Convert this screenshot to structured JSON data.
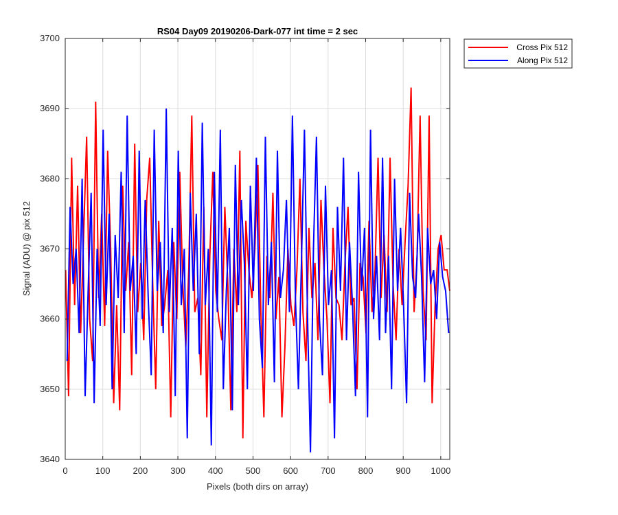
{
  "chart_data": {
    "type": "line",
    "title": "RS04 Day09 20190206-Dark-077 int time = 2 sec",
    "xlabel": "Pixels (both dirs on array)",
    "ylabel": "Signal (ADU) @ pix 512",
    "xlim": [
      0,
      1024
    ],
    "ylim": [
      3640,
      3700
    ],
    "xticks": [
      0,
      100,
      200,
      300,
      400,
      500,
      600,
      700,
      800,
      900,
      1000
    ],
    "yticks": [
      3640,
      3650,
      3660,
      3670,
      3680,
      3690,
      3700
    ],
    "grid": true,
    "legend_position": "outside-top-right",
    "series": [
      {
        "name": "Cross Pix 512",
        "color": "#ff0000",
        "x_start": 1,
        "x_step": 8,
        "values": [
          3667,
          3649,
          3683,
          3662,
          3679,
          3658,
          3672,
          3686,
          3660,
          3654,
          3691,
          3663,
          3675,
          3659,
          3684,
          3670,
          3648,
          3662,
          3647,
          3679,
          3664,
          3671,
          3652,
          3685,
          3661,
          3668,
          3657,
          3677,
          3683,
          3665,
          3650,
          3674,
          3659,
          3662,
          3667,
          3646,
          3671,
          3660,
          3681,
          3665,
          3656,
          3667,
          3689,
          3661,
          3663,
          3652,
          3676,
          3646,
          3669,
          3681,
          3664,
          3660,
          3657,
          3676,
          3665,
          3647,
          3670,
          3661,
          3684,
          3643,
          3674,
          3667,
          3663,
          3670,
          3682,
          3661,
          3646,
          3669,
          3663,
          3678,
          3660,
          3666,
          3646,
          3656,
          3670,
          3662,
          3659,
          3667,
          3680,
          3661,
          3654,
          3673,
          3663,
          3668,
          3657,
          3677,
          3667,
          3660,
          3648,
          3673,
          3663,
          3662,
          3657,
          3668,
          3676,
          3662,
          3663,
          3650,
          3668,
          3666,
          3658,
          3674,
          3661,
          3667,
          3683,
          3663,
          3672,
          3661,
          3683,
          3665,
          3657,
          3670,
          3662,
          3671,
          3679,
          3693,
          3661,
          3669,
          3689,
          3664,
          3657,
          3689,
          3648,
          3662,
          3670,
          3672,
          3667,
          3667,
          3664
        ]
      },
      {
        "name": "Along Pix 512",
        "color": "#0000ff",
        "x_start": 5,
        "x_step": 8,
        "values": [
          3654,
          3676,
          3665,
          3670,
          3658,
          3680,
          3649,
          3664,
          3678,
          3648,
          3670,
          3659,
          3687,
          3662,
          3675,
          3650,
          3672,
          3663,
          3681,
          3658,
          3689,
          3664,
          3669,
          3655,
          3684,
          3660,
          3677,
          3663,
          3652,
          3687,
          3664,
          3671,
          3658,
          3690,
          3661,
          3673,
          3649,
          3684,
          3662,
          3670,
          3643,
          3678,
          3664,
          3675,
          3655,
          3688,
          3662,
          3670,
          3642,
          3681,
          3661,
          3687,
          3650,
          3664,
          3673,
          3647,
          3682,
          3662,
          3677,
          3668,
          3650,
          3679,
          3664,
          3683,
          3660,
          3653,
          3686,
          3662,
          3671,
          3651,
          3684,
          3663,
          3667,
          3677,
          3661,
          3689,
          3663,
          3650,
          3668,
          3687,
          3661,
          3641,
          3670,
          3686,
          3660,
          3652,
          3679,
          3662,
          3667,
          3643,
          3676,
          3664,
          3683,
          3657,
          3671,
          3662,
          3649,
          3681,
          3664,
          3673,
          3646,
          3687,
          3660,
          3669,
          3657,
          3683,
          3658,
          3669,
          3650,
          3680,
          3664,
          3673,
          3662,
          3648,
          3678,
          3666,
          3663,
          3675,
          3666,
          3651,
          3673,
          3665,
          3667,
          3660,
          3671,
          3666,
          3664,
          3658
        ]
      }
    ]
  }
}
